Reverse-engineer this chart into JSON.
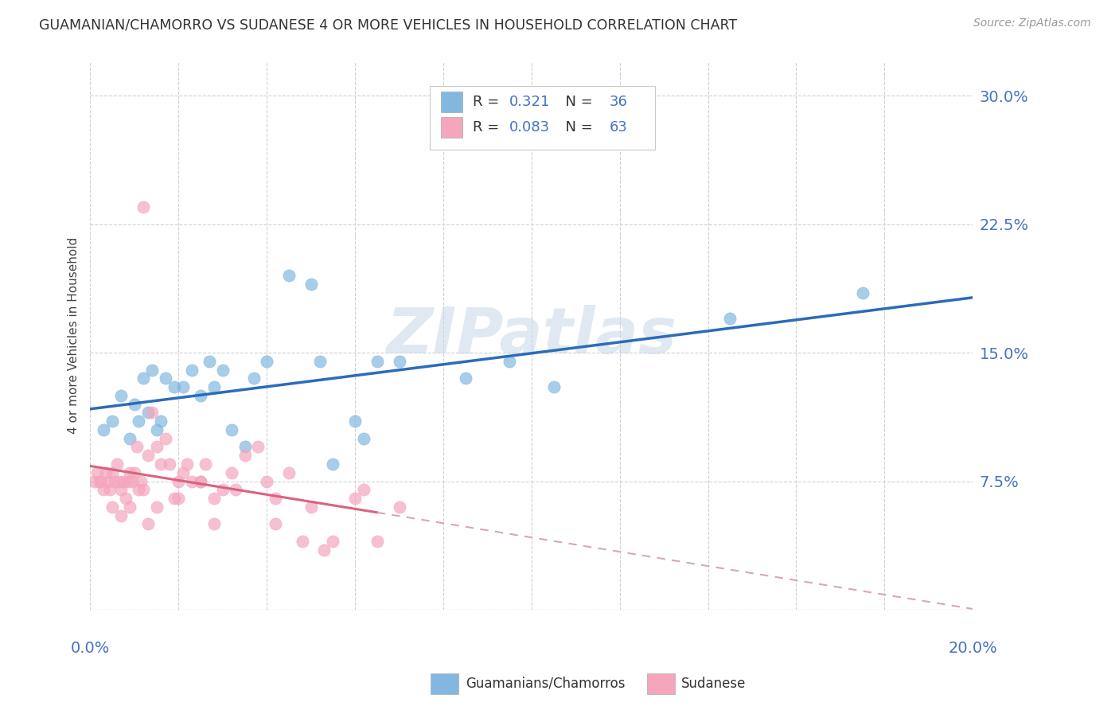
{
  "title": "GUAMANIAN/CHAMORRO VS SUDANESE 4 OR MORE VEHICLES IN HOUSEHOLD CORRELATION CHART",
  "source": "Source: ZipAtlas.com",
  "ylabel": "4 or more Vehicles in Household",
  "xlim": [
    0.0,
    20.0
  ],
  "ylim": [
    0.0,
    32.0
  ],
  "yticks": [
    0.0,
    7.5,
    15.0,
    22.5,
    30.0
  ],
  "ytick_labels": [
    "",
    "7.5%",
    "15.0%",
    "22.5%",
    "30.0%"
  ],
  "watermark": "ZIPatlas",
  "guamanian_color": "#82b8e0",
  "sudanese_color": "#f4a6bc",
  "guamanian_line_color": "#2b6cb8",
  "sudanese_line_color": "#d9637e",
  "sudanese_dash_color": "#d4a8b8",
  "background_color": "#ffffff",
  "guamanian_R": "0.321",
  "guamanian_N": "36",
  "sudanese_R": "0.083",
  "sudanese_N": "63",
  "guamanian_points_x": [
    0.3,
    0.5,
    0.7,
    0.9,
    1.0,
    1.1,
    1.2,
    1.3,
    1.4,
    1.5,
    1.6,
    1.7,
    1.9,
    2.1,
    2.3,
    2.5,
    2.7,
    2.8,
    3.0,
    3.2,
    3.5,
    3.7,
    4.0,
    4.5,
    5.0,
    5.2,
    5.5,
    6.0,
    6.2,
    6.5,
    7.0,
    8.5,
    9.5,
    10.5,
    14.5,
    17.5
  ],
  "guamanian_points_y": [
    10.5,
    11.0,
    12.5,
    10.0,
    12.0,
    11.0,
    13.5,
    11.5,
    14.0,
    10.5,
    11.0,
    13.5,
    13.0,
    13.0,
    14.0,
    12.5,
    14.5,
    13.0,
    14.0,
    10.5,
    9.5,
    13.5,
    14.5,
    19.5,
    19.0,
    14.5,
    8.5,
    11.0,
    10.0,
    14.5,
    14.5,
    13.5,
    14.5,
    13.0,
    17.0,
    18.5
  ],
  "sudanese_points_x": [
    0.1,
    0.15,
    0.2,
    0.25,
    0.3,
    0.35,
    0.4,
    0.45,
    0.5,
    0.55,
    0.6,
    0.65,
    0.7,
    0.75,
    0.8,
    0.85,
    0.9,
    0.95,
    1.0,
    1.05,
    1.1,
    1.15,
    1.2,
    1.3,
    1.4,
    1.5,
    1.6,
    1.7,
    1.8,
    1.9,
    2.0,
    2.1,
    2.2,
    2.3,
    2.5,
    2.6,
    2.8,
    3.0,
    3.2,
    3.5,
    3.8,
    4.0,
    4.2,
    4.5,
    5.0,
    5.5,
    6.0,
    6.5,
    7.0,
    2.0,
    1.3,
    0.7,
    0.5,
    0.9,
    1.5,
    2.8,
    3.3,
    4.8,
    5.3,
    6.2,
    1.2,
    2.5,
    4.2
  ],
  "sudanese_points_y": [
    7.5,
    8.0,
    7.5,
    7.5,
    7.0,
    8.0,
    7.5,
    7.0,
    8.0,
    7.5,
    8.5,
    7.5,
    7.0,
    7.5,
    6.5,
    7.5,
    8.0,
    7.5,
    8.0,
    9.5,
    7.0,
    7.5,
    7.0,
    9.0,
    11.5,
    9.5,
    8.5,
    10.0,
    8.5,
    6.5,
    7.5,
    8.0,
    8.5,
    7.5,
    7.5,
    8.5,
    6.5,
    7.0,
    8.0,
    9.0,
    9.5,
    7.5,
    6.5,
    8.0,
    6.0,
    4.0,
    6.5,
    4.0,
    6.0,
    6.5,
    5.0,
    5.5,
    6.0,
    6.0,
    6.0,
    5.0,
    7.0,
    4.0,
    3.5,
    7.0,
    23.5,
    7.5,
    5.0
  ]
}
